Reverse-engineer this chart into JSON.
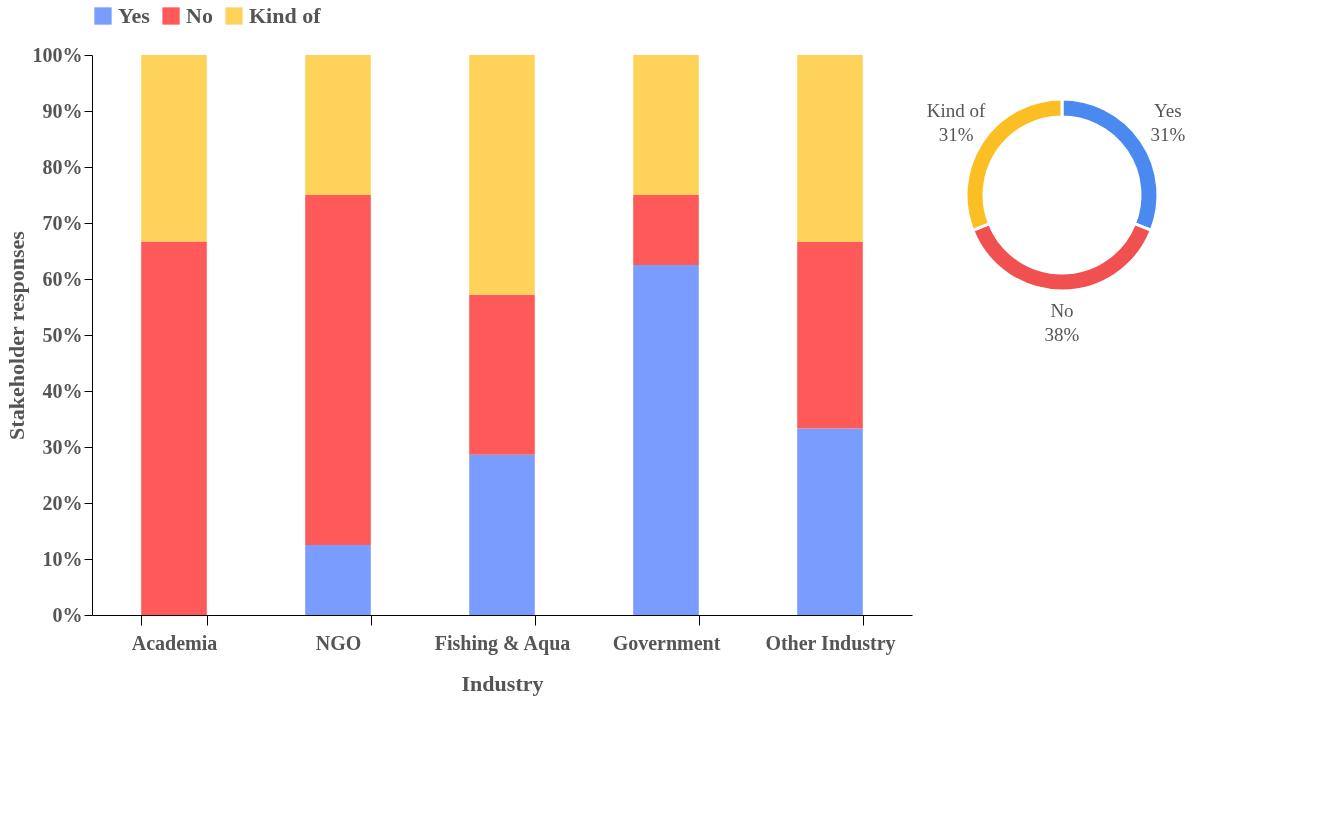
{
  "chart_data": [
    {
      "type": "bar",
      "stacked": true,
      "categories": [
        "Academia",
        "NGO",
        "Fishing & Aqua",
        "Government",
        "Other Industry"
      ],
      "series": [
        {
          "name": "Yes",
          "color": "#7a9cff",
          "values": [
            0,
            12.5,
            28.6,
            62.5,
            33.3
          ]
        },
        {
          "name": "No",
          "color": "#ff5a5a",
          "values": [
            66.7,
            62.5,
            28.6,
            12.5,
            33.3
          ]
        },
        {
          "name": "Kind of",
          "color": "#ffd35a",
          "values": [
            33.3,
            25,
            42.8,
            25,
            33.4
          ]
        }
      ],
      "xlabel": "Industry",
      "ylabel": "Stakeholder responses",
      "ylim": [
        0,
        100
      ],
      "yticks": [
        {
          "value": 0,
          "label": "0%"
        },
        {
          "value": 10,
          "label": "10%"
        },
        {
          "value": 20,
          "label": "20%"
        },
        {
          "value": 30,
          "label": "30%"
        },
        {
          "value": 40,
          "label": "40%"
        },
        {
          "value": 50,
          "label": "50%"
        },
        {
          "value": 60,
          "label": "60%"
        },
        {
          "value": 70,
          "label": "70%"
        },
        {
          "value": 80,
          "label": "80%"
        },
        {
          "value": 90,
          "label": "90%"
        },
        {
          "value": 100,
          "label": "100%"
        }
      ],
      "legend": "top",
      "grid": false
    },
    {
      "type": "donut",
      "categories": [
        "Yes",
        "No",
        "Kind of"
      ],
      "values": [
        31,
        38,
        31
      ],
      "colors": [
        "#4a8af0",
        "#f05050",
        "#fbbf24"
      ],
      "value_labels": [
        "31%",
        "38%",
        "31%"
      ]
    }
  ]
}
